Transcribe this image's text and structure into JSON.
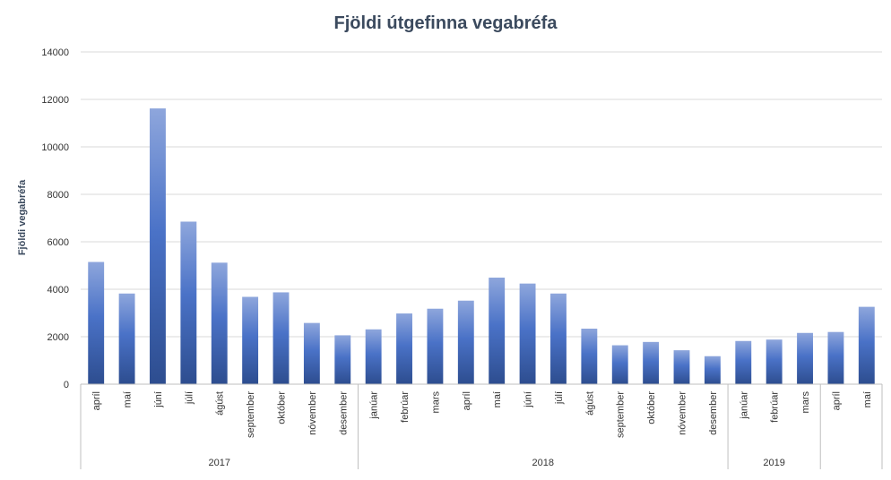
{
  "chart_data": {
    "type": "bar",
    "title": "Fjöldi útgefinna vegabréfa",
    "ylabel": "Fjöldi vegabréfa",
    "xlabel": "",
    "ylim": [
      0,
      14000
    ],
    "yticks": [
      0,
      2000,
      4000,
      6000,
      8000,
      10000,
      12000,
      14000
    ],
    "grid": true,
    "legend": "none",
    "bar_color_top": "#8ea6dc",
    "bar_color_mid": "#4a72c7",
    "bar_color_bottom": "#2d4d8f",
    "categories": [
      "apríl",
      "maí",
      "júní",
      "júlí",
      "ágúst",
      "september",
      "október",
      "nóvember",
      "desember",
      "janúar",
      "febrúar",
      "mars",
      "apríl",
      "maí",
      "júní",
      "júlí",
      "ágúst",
      "september",
      "október",
      "nóvember",
      "desember",
      "janúar",
      "febrúar",
      "mars",
      "apríl",
      "maí"
    ],
    "values": [
      5150,
      3820,
      11620,
      6850,
      5120,
      3680,
      3870,
      2580,
      2060,
      2310,
      2980,
      3180,
      3520,
      4490,
      4240,
      3820,
      2340,
      1640,
      1780,
      1430,
      1180,
      1820,
      1880,
      2160,
      2200,
      3260
    ],
    "groups": [
      {
        "label": "2017",
        "count": 9
      },
      {
        "label": "2018",
        "count": 12
      },
      {
        "label": "2019",
        "count": 3
      },
      {
        "label": "",
        "count": 2
      }
    ]
  }
}
